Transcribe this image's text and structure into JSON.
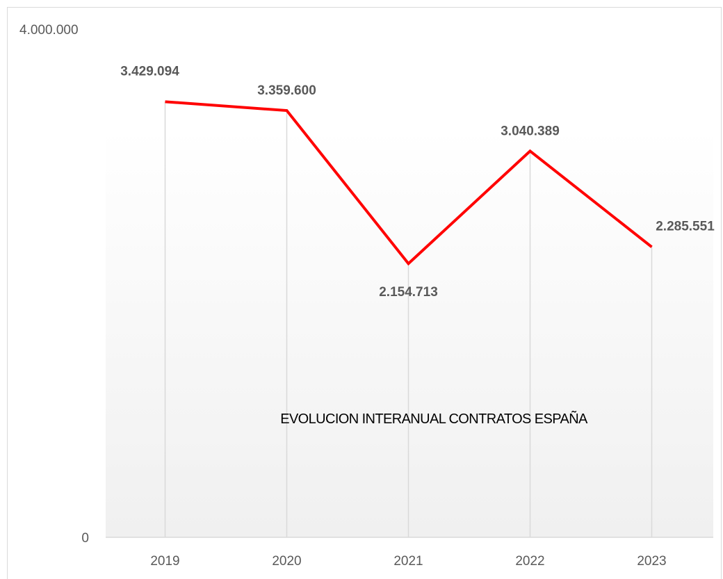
{
  "chart_data": {
    "type": "line",
    "title": "EVOLUCION INTERANUAL CONTRATOS ESPAÑA",
    "xlabel": "",
    "ylabel": "",
    "categories": [
      "2019",
      "2020",
      "2021",
      "2022",
      "2023"
    ],
    "series": [
      {
        "values": [
          3429094,
          3359600,
          2154713,
          3040389,
          2285551
        ],
        "labels": [
          "3.429.094",
          "3.359.600",
          "2.154.713",
          "3.040.389",
          "2.285.551"
        ]
      }
    ],
    "ylim": [
      0,
      4000000
    ],
    "yticks": [
      {
        "value": 0,
        "label": "0"
      },
      {
        "value": 4000000,
        "label": "4.000.000"
      }
    ],
    "grid": "vertical",
    "legend": "none",
    "colors": {
      "line": "#ff0000",
      "grid": "#d9d9d9",
      "axis": "#d9d9d9",
      "labels": "#595959"
    }
  }
}
